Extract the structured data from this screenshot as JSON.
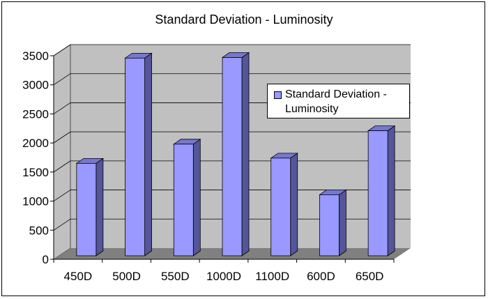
{
  "chart_data": {
    "type": "bar",
    "title": "Standard Deviation - Luminosity",
    "categories": [
      "450D",
      "500D",
      "550D",
      "1000D",
      "1100D",
      "600D",
      "650D"
    ],
    "series": [
      {
        "name": "Standard Deviation - Luminosity",
        "values": [
          1590,
          3400,
          1920,
          3410,
          1680,
          1050,
          2150
        ]
      }
    ],
    "yticks": [
      "0",
      "500",
      "1000",
      "1500",
      "2000",
      "2500",
      "3000",
      "3500"
    ],
    "ylim": [
      0,
      3500
    ],
    "grid": true,
    "legend_position": "right",
    "colors": {
      "bar_front": "#9999ff",
      "bar_side": "#55559a",
      "bar_top": "#7777cc",
      "wall": "#c0c0c0",
      "floor": "#808080"
    }
  }
}
